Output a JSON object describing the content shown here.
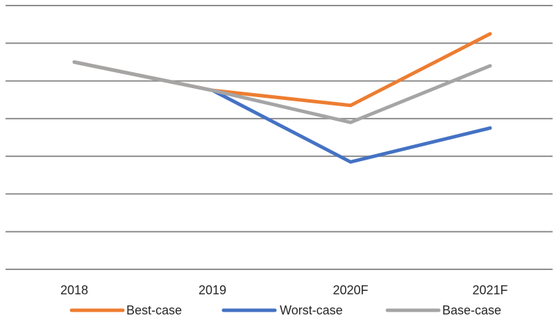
{
  "chart_data": {
    "type": "line",
    "title": "",
    "xlabel": "",
    "ylabel": "",
    "categories": [
      "2018",
      "2019",
      "2020F",
      "2021F"
    ],
    "series": [
      {
        "name": "Best-case",
        "values": [
          5.5,
          4.75,
          4.35,
          6.25
        ],
        "color": "#ED7D31"
      },
      {
        "name": "Worst-case",
        "values": [
          5.5,
          4.75,
          2.85,
          3.75
        ],
        "color": "#4472C4"
      },
      {
        "name": "Base-case",
        "values": [
          5.5,
          4.75,
          3.9,
          5.4
        ],
        "color": "#A5A5A5"
      }
    ],
    "ylim": [
      0,
      7
    ],
    "grid": true,
    "legend": "bottom",
    "gridline_color": "#8C8C8C"
  }
}
